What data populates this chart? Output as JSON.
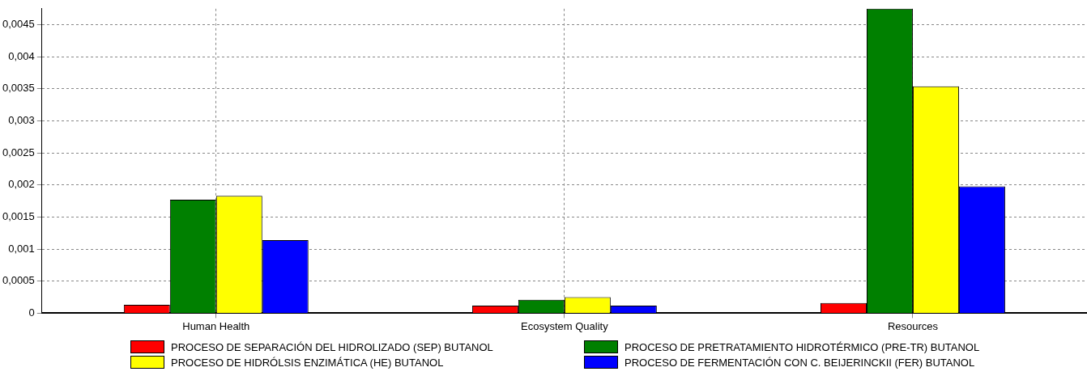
{
  "chart_data": {
    "type": "bar",
    "categories": [
      "Human Health",
      "Ecosystem Quality",
      "Resources"
    ],
    "series": [
      {
        "name": "PROCESO DE SEPARACIÓN DEL HIDROLIZADO (SEP) BUTANOL",
        "color": "#ff0000",
        "values": [
          0.00013,
          0.00012,
          0.00016
        ]
      },
      {
        "name": "PROCESO DE PRETRATAMIENTO HIDROTÉRMICO (PRE-TR) BUTANOL",
        "color": "#008000",
        "values": [
          0.00177,
          0.00021,
          0.00475
        ]
      },
      {
        "name": "PROCESO DE HIDRÓLSIS ENZIMÁTICA (HE) BUTANOL",
        "color": "#ffff00",
        "values": [
          0.00183,
          0.00025,
          0.00354
        ]
      },
      {
        "name": "PROCESO DE FERMENTACIÓN CON C. BEIJERINCKII (FER) BUTANOL",
        "color": "#0000ff",
        "values": [
          0.00114,
          0.00012,
          0.00198
        ]
      }
    ],
    "ylim": [
      0,
      0.00475
    ],
    "yticks": [
      0,
      {
        "value": 0.0005,
        "label": "0,0005"
      },
      {
        "value": 0.001,
        "label": "0,001"
      },
      {
        "value": 0.0015,
        "label": "0,0015"
      },
      {
        "value": 0.002,
        "label": "0,002"
      },
      {
        "value": 0.0025,
        "label": "0,0025"
      },
      {
        "value": 0.003,
        "label": "0,003"
      },
      {
        "value": 0.0035,
        "label": "0,0035"
      },
      {
        "value": 0.004,
        "label": "0,004"
      },
      {
        "value": 0.0045,
        "label": "0,0045"
      }
    ],
    "grid": true,
    "legend": "bottom"
  }
}
